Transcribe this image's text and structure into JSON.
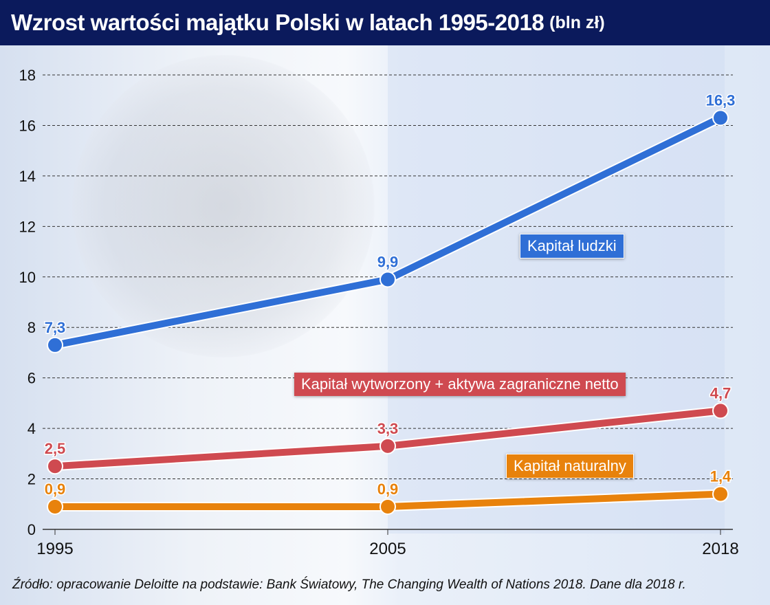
{
  "header": {
    "title": "Wzrost wartości majątku Polski w latach 1995-2018",
    "unit": "(bln zł)"
  },
  "legend": {
    "human": "Kapitał ludzki",
    "produced": "Kapitał wytworzony + aktywa zagraniczne netto",
    "natural": "Kapitał naturalny"
  },
  "source": "Źródło: opracowanie Deloitte na podstawie: Bank Światowy, The Changing Wealth of Nations 2018. Dane dla 2018 r.",
  "chart_data": {
    "type": "line",
    "title": "Wzrost wartości majątku Polski w latach 1995-2018 (bln zł)",
    "xlabel": "",
    "ylabel": "bln zł",
    "categories": [
      "1995",
      "2005",
      "2018"
    ],
    "ylim": [
      0,
      18
    ],
    "yticks": [
      0,
      2,
      4,
      6,
      8,
      10,
      12,
      14,
      16,
      18
    ],
    "grid": true,
    "series": [
      {
        "name": "Kapitał ludzki",
        "color": "#2f6fd6",
        "values": [
          7.3,
          9.9,
          16.3
        ],
        "labels": [
          "7,3",
          "9,9",
          "16,3"
        ]
      },
      {
        "name": "Kapitał wytworzony + aktywa zagraniczne netto",
        "color": "#cf4a50",
        "values": [
          2.5,
          3.3,
          4.7
        ],
        "labels": [
          "2,5",
          "3,3",
          "4,7"
        ]
      },
      {
        "name": "Kapitał naturalny",
        "color": "#e8820c",
        "values": [
          0.9,
          0.9,
          1.4
        ],
        "labels": [
          "0,9",
          "0,9",
          "1,4"
        ]
      }
    ]
  }
}
